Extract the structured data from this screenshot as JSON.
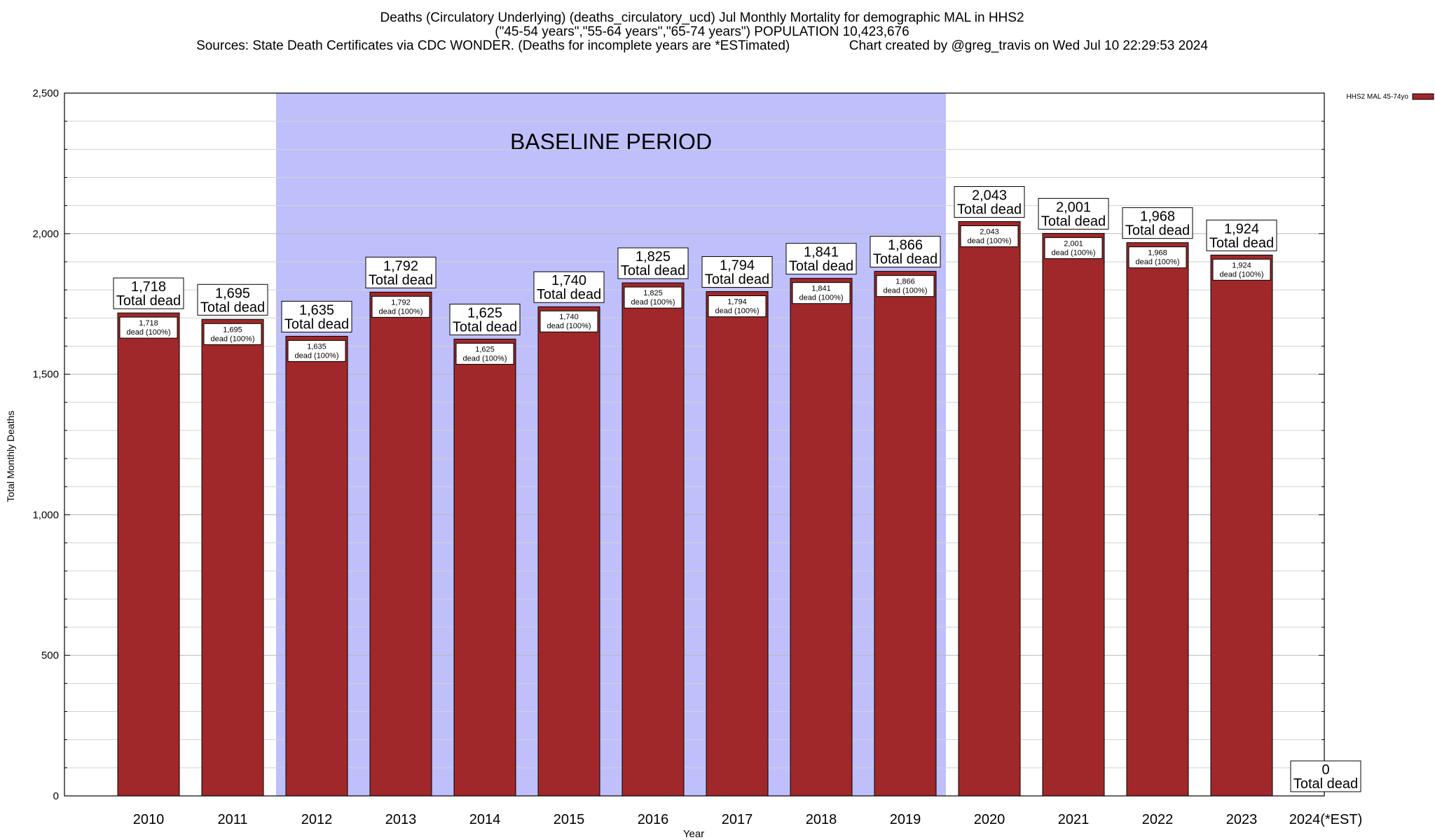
{
  "chart_data": {
    "type": "bar",
    "title_lines": [
      "Deaths (Circulatory Underlying) (deaths_circulatory_ucd) Jul Monthly Mortality for demographic MAL in HHS2",
      "(\"45-54 years\",\"55-64 years\",\"65-74 years\") POPULATION 10,423,676",
      "Sources: State Death Certificates via CDC WONDER. (Deaths for incomplete years are *ESTimated)                Chart created by @greg_travis on Wed Jul 10 22:29:53 2024"
    ],
    "xlabel": "Year",
    "ylabel": "Total Monthly Deaths",
    "ylim": [
      0,
      2500
    ],
    "yticks": [
      0,
      500,
      1000,
      1500,
      2000,
      2500
    ],
    "ytick_labels": [
      "0",
      "500",
      "1,000",
      "1,500",
      "2,000",
      "2,500"
    ],
    "minor_step": 100,
    "grid": true,
    "categories": [
      "2010",
      "2011",
      "2012",
      "2013",
      "2014",
      "2015",
      "2016",
      "2017",
      "2018",
      "2019",
      "2020",
      "2021",
      "2022",
      "2023",
      "2024(*EST)"
    ],
    "values": [
      1718,
      1695,
      1635,
      1792,
      1625,
      1740,
      1825,
      1794,
      1841,
      1866,
      2043,
      2001,
      1968,
      1924,
      0
    ],
    "value_labels": [
      "1,718",
      "1,695",
      "1,635",
      "1,792",
      "1,625",
      "1,740",
      "1,825",
      "1,794",
      "1,841",
      "1,866",
      "2,043",
      "2,001",
      "1,968",
      "1,924",
      "0"
    ],
    "top_label_suffix": "Total dead",
    "inner_label_suffix": "dead (100%)",
    "baseline": {
      "label": "BASELINE PERIOD",
      "start": "2012",
      "end": "2019",
      "color": "#bfbffb"
    },
    "series": [
      {
        "name": "HHS2 MAL 45-74yo",
        "color": "#a0282a"
      }
    ],
    "legend_position": "top-right"
  }
}
